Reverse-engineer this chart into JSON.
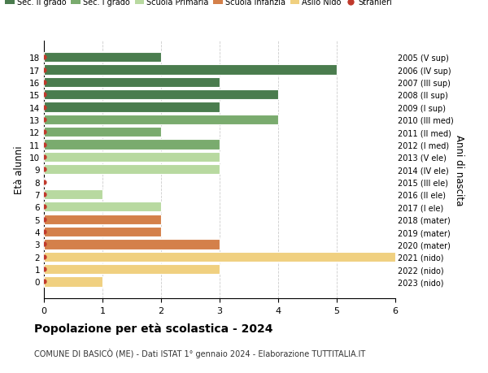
{
  "ages": [
    18,
    17,
    16,
    15,
    14,
    13,
    12,
    11,
    10,
    9,
    8,
    7,
    6,
    5,
    4,
    3,
    2,
    1,
    0
  ],
  "years": [
    "2005 (V sup)",
    "2006 (IV sup)",
    "2007 (III sup)",
    "2008 (II sup)",
    "2009 (I sup)",
    "2010 (III med)",
    "2011 (II med)",
    "2012 (I med)",
    "2013 (V ele)",
    "2014 (IV ele)",
    "2015 (III ele)",
    "2016 (II ele)",
    "2017 (I ele)",
    "2018 (mater)",
    "2019 (mater)",
    "2020 (mater)",
    "2021 (nido)",
    "2022 (nido)",
    "2023 (nido)"
  ],
  "values": [
    2,
    5,
    3,
    4,
    3,
    4,
    2,
    3,
    3,
    3,
    0,
    1,
    2,
    2,
    2,
    3,
    6,
    3,
    1
  ],
  "colors": [
    "#4a7c4e",
    "#4a7c4e",
    "#4a7c4e",
    "#4a7c4e",
    "#4a7c4e",
    "#7aab6e",
    "#7aab6e",
    "#7aab6e",
    "#b8d9a0",
    "#b8d9a0",
    "#b8d9a0",
    "#b8d9a0",
    "#b8d9a0",
    "#d4804a",
    "#d4804a",
    "#d4804a",
    "#f0d080",
    "#f0d080",
    "#f0d080"
  ],
  "legend_labels": [
    "Sec. II grado",
    "Sec. I grado",
    "Scuola Primaria",
    "Scuola Infanzia",
    "Asilo Nido",
    "Stranieri"
  ],
  "legend_colors": [
    "#4a7c4e",
    "#7aab6e",
    "#b8d9a0",
    "#d4804a",
    "#f0d080",
    "#c0392b"
  ],
  "title": "Popolazione per età scolastica - 2024",
  "subtitle": "COMUNE DI BASICÒ (ME) - Dati ISTAT 1° gennaio 2024 - Elaborazione TUTTITALIA.IT",
  "ylabel": "Età alunni",
  "right_label": "Anni di nascita",
  "xlim": [
    0,
    6
  ],
  "xticks": [
    0,
    1,
    2,
    3,
    4,
    5,
    6
  ],
  "background_color": "#ffffff",
  "grid_color": "#cccccc",
  "bar_height": 0.8,
  "stranieri_color": "#c0392b"
}
